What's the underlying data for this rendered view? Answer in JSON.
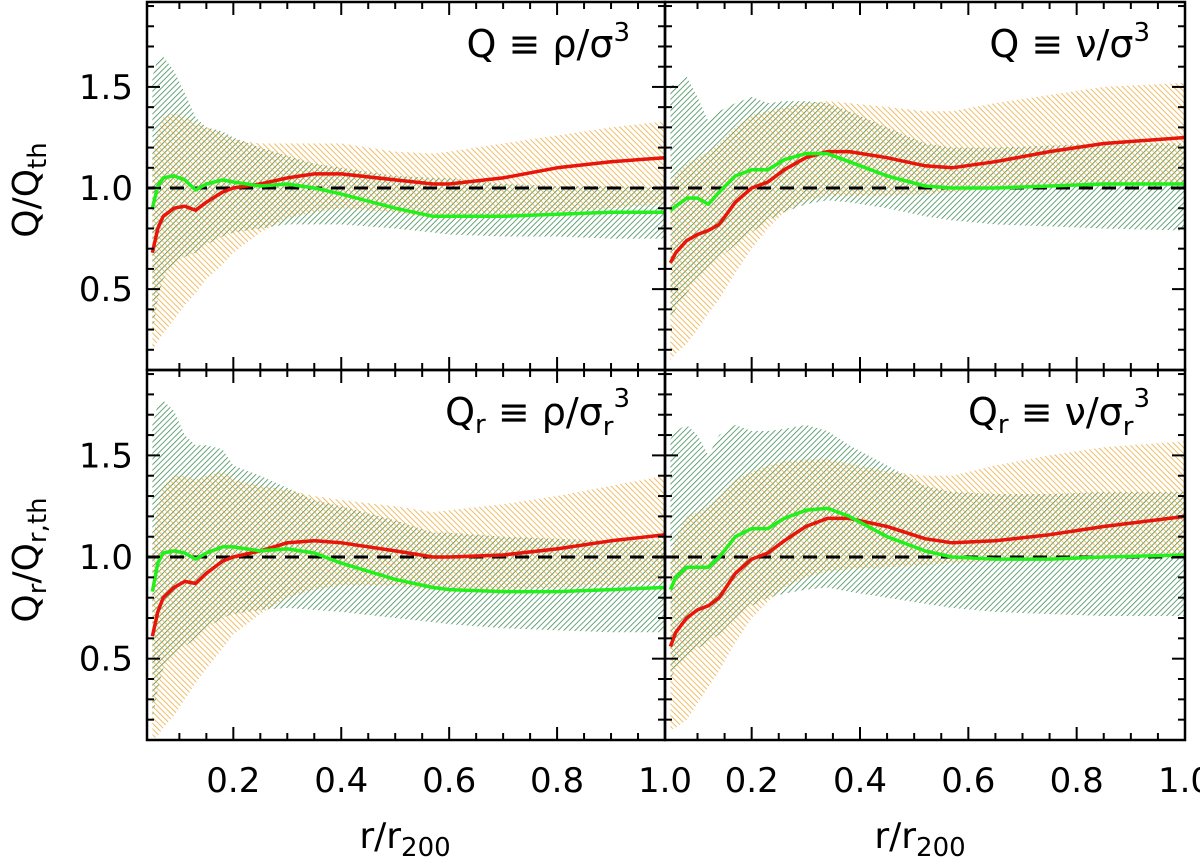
{
  "figure": {
    "xlabel": {
      "main": "r/r",
      "sub": "200"
    },
    "ylabel_top": {
      "main": "Q/Q",
      "sub": "th"
    },
    "ylabel_bottom": {
      "main": "Q",
      "sub1": "r",
      "mid": "/Q",
      "sub2": "r,th"
    }
  },
  "colors": {
    "red": "#e8150a",
    "green": "#22f01a",
    "orange_band": "#e8a020",
    "green_band": "#1e7a3a",
    "reference": "#000000"
  },
  "chart_data": [
    {
      "type": "line",
      "panel": "top-left",
      "title": {
        "q": "Q",
        "qsub": "",
        "rest": "≡ ρ/σ",
        "ssub": "",
        "sup": "3"
      },
      "xlim": [
        0.04,
        1.0
      ],
      "ylim": [
        0.1,
        1.92
      ],
      "xticks": [
        0.2,
        0.4,
        0.6,
        0.8,
        1.0
      ],
      "yticks": [
        0.5,
        1.0,
        1.5
      ],
      "reference_line": 1.0,
      "x": [
        0.05,
        0.06,
        0.07,
        0.09,
        0.11,
        0.13,
        0.15,
        0.18,
        0.2,
        0.25,
        0.3,
        0.35,
        0.4,
        0.5,
        0.57,
        0.6,
        0.7,
        0.8,
        0.9,
        1.0
      ],
      "series": [
        {
          "name": "red",
          "color": "red",
          "values": [
            0.68,
            0.8,
            0.86,
            0.9,
            0.91,
            0.89,
            0.93,
            0.98,
            1.0,
            1.02,
            1.05,
            1.07,
            1.07,
            1.04,
            1.02,
            1.02,
            1.05,
            1.1,
            1.13,
            1.15
          ]
        },
        {
          "name": "green",
          "color": "green",
          "values": [
            0.9,
            1.01,
            1.05,
            1.06,
            1.04,
            0.99,
            1.02,
            1.04,
            1.03,
            1.01,
            1.02,
            1.0,
            0.97,
            0.9,
            0.86,
            0.86,
            0.86,
            0.87,
            0.88,
            0.88
          ]
        }
      ],
      "bands": [
        {
          "name": "green-band",
          "color": "green_band",
          "lower": [
            0.28,
            0.45,
            0.55,
            0.62,
            0.66,
            0.68,
            0.72,
            0.76,
            0.78,
            0.8,
            0.82,
            0.82,
            0.82,
            0.8,
            0.78,
            0.77,
            0.76,
            0.76,
            0.75,
            0.75
          ],
          "upper": [
            1.55,
            1.64,
            1.65,
            1.58,
            1.47,
            1.35,
            1.3,
            1.28,
            1.25,
            1.2,
            1.16,
            1.12,
            1.1,
            1.06,
            1.05,
            1.05,
            1.02,
            1.01,
            1.01,
            1.0
          ]
        },
        {
          "name": "orange-band",
          "color": "orange_band",
          "lower": [
            0.2,
            0.24,
            0.28,
            0.35,
            0.42,
            0.48,
            0.55,
            0.62,
            0.68,
            0.78,
            0.85,
            0.88,
            0.9,
            0.88,
            0.85,
            0.85,
            0.86,
            0.88,
            0.9,
            0.92
          ],
          "upper": [
            1.15,
            1.28,
            1.35,
            1.37,
            1.35,
            1.32,
            1.3,
            1.27,
            1.24,
            1.22,
            1.22,
            1.22,
            1.22,
            1.18,
            1.17,
            1.18,
            1.22,
            1.26,
            1.3,
            1.33
          ]
        }
      ]
    },
    {
      "type": "line",
      "panel": "top-right",
      "title": {
        "q": "Q",
        "qsub": "",
        "rest": "≡ ν/σ",
        "ssub": "",
        "sup": "3"
      },
      "xlim": [
        0.04,
        1.0
      ],
      "ylim": [
        0.1,
        1.92
      ],
      "xticks": [
        0.2,
        0.4,
        0.6,
        0.8,
        1.0
      ],
      "yticks": [
        0.5,
        1.0,
        1.5
      ],
      "reference_line": 1.0,
      "x": [
        0.05,
        0.06,
        0.08,
        0.1,
        0.12,
        0.14,
        0.17,
        0.2,
        0.23,
        0.26,
        0.3,
        0.34,
        0.38,
        0.45,
        0.52,
        0.57,
        0.65,
        0.75,
        0.85,
        1.0
      ],
      "series": [
        {
          "name": "red",
          "color": "red",
          "values": [
            0.63,
            0.68,
            0.74,
            0.77,
            0.79,
            0.82,
            0.93,
            1.0,
            1.03,
            1.09,
            1.15,
            1.18,
            1.18,
            1.15,
            1.11,
            1.1,
            1.13,
            1.18,
            1.22,
            1.25
          ]
        },
        {
          "name": "green",
          "color": "green",
          "values": [
            0.89,
            0.91,
            0.95,
            0.95,
            0.92,
            0.98,
            1.06,
            1.09,
            1.09,
            1.14,
            1.17,
            1.17,
            1.13,
            1.06,
            1.01,
            1.0,
            1.0,
            1.01,
            1.02,
            1.02
          ]
        }
      ],
      "bands": [
        {
          "name": "green-band",
          "color": "green_band",
          "lower": [
            0.35,
            0.4,
            0.48,
            0.55,
            0.6,
            0.65,
            0.72,
            0.78,
            0.84,
            0.88,
            0.92,
            0.94,
            0.93,
            0.9,
            0.86,
            0.84,
            0.82,
            0.81,
            0.8,
            0.79
          ],
          "upper": [
            1.52,
            1.5,
            1.55,
            1.45,
            1.33,
            1.38,
            1.42,
            1.45,
            1.42,
            1.43,
            1.43,
            1.42,
            1.38,
            1.3,
            1.22,
            1.2,
            1.2,
            1.21,
            1.22,
            1.22
          ]
        },
        {
          "name": "orange-band",
          "color": "orange_band",
          "lower": [
            0.15,
            0.18,
            0.23,
            0.3,
            0.38,
            0.45,
            0.58,
            0.7,
            0.8,
            0.88,
            0.94,
            0.96,
            0.96,
            0.96,
            0.97,
            0.98,
            1.0,
            1.01,
            1.01,
            1.02
          ],
          "upper": [
            1.02,
            1.07,
            1.12,
            1.15,
            1.18,
            1.22,
            1.3,
            1.36,
            1.38,
            1.4,
            1.42,
            1.43,
            1.42,
            1.4,
            1.38,
            1.38,
            1.42,
            1.46,
            1.5,
            1.52
          ]
        }
      ]
    },
    {
      "type": "line",
      "panel": "bottom-left",
      "title": {
        "q": "Q",
        "qsub": "r",
        "rest": "≡ ρ/σ",
        "ssub": "r",
        "sup": "3"
      },
      "xlim": [
        0.04,
        1.0
      ],
      "ylim": [
        0.1,
        1.92
      ],
      "xticks": [
        0.2,
        0.4,
        0.6,
        0.8,
        1.0
      ],
      "yticks": [
        0.5,
        1.0,
        1.5
      ],
      "reference_line": 1.0,
      "x": [
        0.05,
        0.06,
        0.07,
        0.09,
        0.11,
        0.13,
        0.15,
        0.18,
        0.2,
        0.25,
        0.3,
        0.35,
        0.4,
        0.5,
        0.57,
        0.6,
        0.7,
        0.8,
        0.9,
        1.0
      ],
      "series": [
        {
          "name": "red",
          "color": "red",
          "values": [
            0.61,
            0.73,
            0.8,
            0.85,
            0.88,
            0.87,
            0.92,
            0.98,
            1.0,
            1.03,
            1.07,
            1.08,
            1.07,
            1.03,
            1.0,
            1.0,
            1.01,
            1.04,
            1.08,
            1.11
          ]
        },
        {
          "name": "green",
          "color": "green",
          "values": [
            0.83,
            0.97,
            1.02,
            1.03,
            1.02,
            0.99,
            1.02,
            1.05,
            1.05,
            1.03,
            1.04,
            1.02,
            0.97,
            0.89,
            0.85,
            0.84,
            0.83,
            0.83,
            0.84,
            0.85
          ]
        }
      ],
      "bands": [
        {
          "name": "green-band",
          "color": "green_band",
          "lower": [
            0.2,
            0.35,
            0.45,
            0.52,
            0.56,
            0.6,
            0.65,
            0.7,
            0.72,
            0.74,
            0.75,
            0.74,
            0.73,
            0.7,
            0.68,
            0.67,
            0.65,
            0.64,
            0.63,
            0.63
          ],
          "upper": [
            1.65,
            1.75,
            1.77,
            1.72,
            1.6,
            1.55,
            1.55,
            1.53,
            1.45,
            1.4,
            1.34,
            1.28,
            1.25,
            1.18,
            1.12,
            1.12,
            1.1,
            1.09,
            1.08,
            1.08
          ]
        },
        {
          "name": "orange-band",
          "color": "orange_band",
          "lower": [
            0.1,
            0.12,
            0.16,
            0.22,
            0.3,
            0.38,
            0.45,
            0.55,
            0.62,
            0.72,
            0.8,
            0.84,
            0.86,
            0.86,
            0.84,
            0.84,
            0.84,
            0.85,
            0.86,
            0.88
          ],
          "upper": [
            1.05,
            1.25,
            1.35,
            1.4,
            1.4,
            1.38,
            1.4,
            1.42,
            1.38,
            1.35,
            1.33,
            1.3,
            1.28,
            1.25,
            1.22,
            1.23,
            1.26,
            1.3,
            1.35,
            1.4
          ]
        }
      ]
    },
    {
      "type": "line",
      "panel": "bottom-right",
      "title": {
        "q": "Q",
        "qsub": "r",
        "rest": "≡ ν/σ",
        "ssub": "r",
        "sup": "3"
      },
      "xlim": [
        0.04,
        1.0
      ],
      "ylim": [
        0.1,
        1.92
      ],
      "xticks": [
        0.2,
        0.4,
        0.6,
        0.8,
        1.0
      ],
      "yticks": [
        0.5,
        1.0,
        1.5
      ],
      "reference_line": 1.0,
      "x": [
        0.05,
        0.06,
        0.08,
        0.1,
        0.12,
        0.14,
        0.17,
        0.2,
        0.23,
        0.26,
        0.3,
        0.34,
        0.38,
        0.45,
        0.52,
        0.57,
        0.65,
        0.75,
        0.85,
        1.0
      ],
      "series": [
        {
          "name": "red",
          "color": "red",
          "values": [
            0.56,
            0.63,
            0.7,
            0.74,
            0.76,
            0.8,
            0.92,
            0.99,
            1.02,
            1.08,
            1.15,
            1.19,
            1.19,
            1.15,
            1.09,
            1.07,
            1.08,
            1.11,
            1.15,
            1.2
          ]
        },
        {
          "name": "green",
          "color": "green",
          "values": [
            0.84,
            0.9,
            0.95,
            0.95,
            0.95,
            1.0,
            1.1,
            1.14,
            1.14,
            1.19,
            1.23,
            1.24,
            1.2,
            1.1,
            1.03,
            1.0,
            0.99,
            0.99,
            1.0,
            1.01
          ]
        }
      ],
      "bands": [
        {
          "name": "green-band",
          "color": "green_band",
          "lower": [
            0.4,
            0.45,
            0.5,
            0.55,
            0.58,
            0.62,
            0.7,
            0.76,
            0.8,
            0.82,
            0.84,
            0.85,
            0.83,
            0.8,
            0.77,
            0.75,
            0.73,
            0.72,
            0.71,
            0.71
          ],
          "upper": [
            1.58,
            1.62,
            1.65,
            1.6,
            1.5,
            1.6,
            1.65,
            1.62,
            1.62,
            1.63,
            1.65,
            1.62,
            1.55,
            1.45,
            1.35,
            1.32,
            1.31,
            1.31,
            1.32,
            1.32
          ]
        },
        {
          "name": "orange-band",
          "color": "orange_band",
          "lower": [
            0.15,
            0.16,
            0.2,
            0.28,
            0.36,
            0.44,
            0.58,
            0.7,
            0.78,
            0.85,
            0.9,
            0.93,
            0.94,
            0.95,
            0.96,
            0.97,
            0.98,
            0.99,
            1.0,
            1.01
          ],
          "upper": [
            1.0,
            1.1,
            1.2,
            1.22,
            1.25,
            1.3,
            1.38,
            1.42,
            1.45,
            1.47,
            1.48,
            1.48,
            1.46,
            1.42,
            1.4,
            1.4,
            1.45,
            1.5,
            1.54,
            1.57
          ]
        }
      ]
    }
  ]
}
